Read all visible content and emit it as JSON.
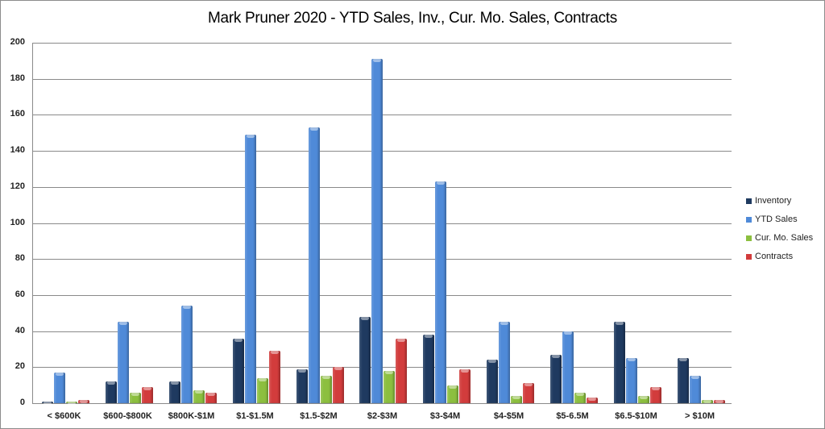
{
  "chart_data": {
    "type": "bar",
    "title": "Mark Pruner 2020 - YTD Sales, Inv., Cur. Mo. Sales, Contracts",
    "xlabel": "",
    "ylabel": "",
    "ylim": [
      0,
      200
    ],
    "yticks": [
      0,
      20,
      40,
      60,
      80,
      100,
      120,
      140,
      160,
      180,
      200
    ],
    "grid": true,
    "legend_position": "right",
    "categories": [
      "< $600K",
      "$600-$800K",
      "$800K-$1M",
      "$1-$1.5M",
      "$1.5-$2M",
      "$2-$3M",
      "$3-$4M",
      "$4-$5M",
      "$5-6.5M",
      "$6.5-$10M",
      "> $10M"
    ],
    "series": [
      {
        "name": "Inventory",
        "color": "#1f3a60",
        "values": [
          1,
          12,
          12,
          36,
          19,
          48,
          38,
          24,
          27,
          45,
          25
        ]
      },
      {
        "name": "YTD Sales",
        "color": "#4f8ad8",
        "values": [
          17,
          45,
          54,
          149,
          153,
          191,
          123,
          45,
          40,
          25,
          15
        ]
      },
      {
        "name": "Cur. Mo. Sales",
        "color": "#8cbf3f",
        "values": [
          1,
          6,
          7,
          14,
          15,
          18,
          10,
          4,
          6,
          4,
          2
        ]
      },
      {
        "name": "Contracts",
        "color": "#d23c3c",
        "values": [
          2,
          9,
          6,
          29,
          20,
          36,
          19,
          11,
          3,
          9,
          2
        ]
      }
    ]
  }
}
